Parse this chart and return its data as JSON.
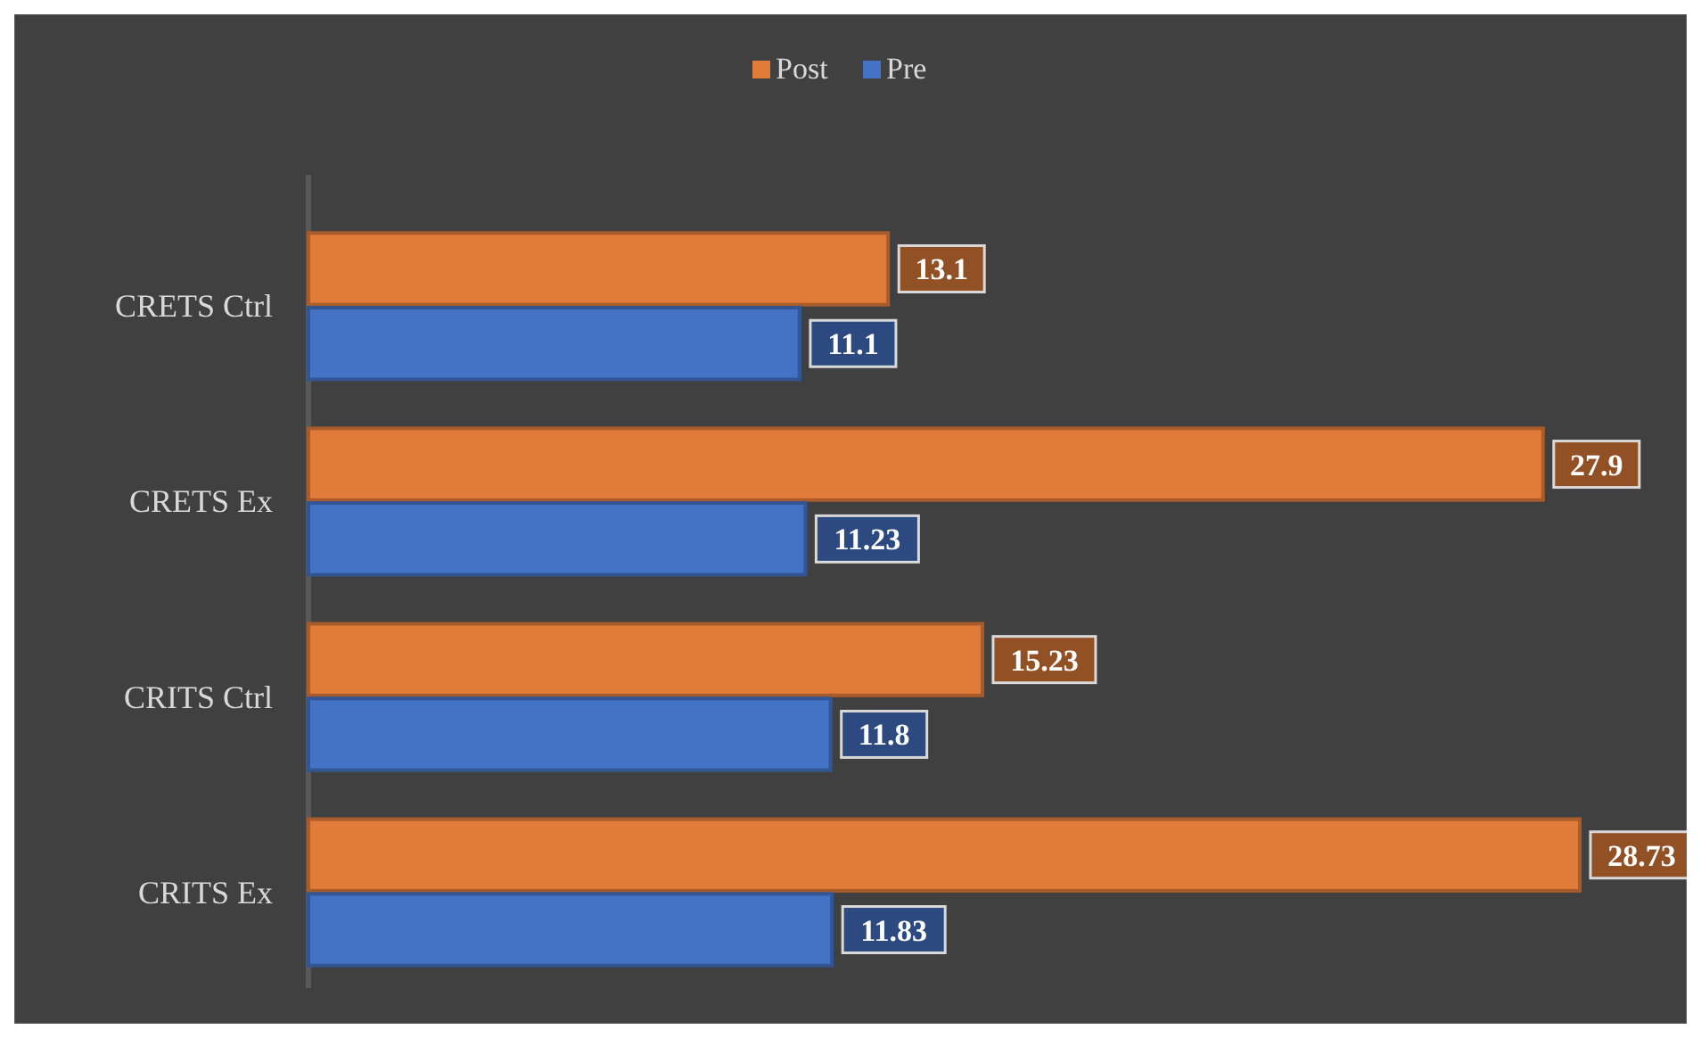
{
  "chart_data": {
    "type": "bar",
    "orientation": "horizontal",
    "categories": [
      "CRETS Ctrl",
      "CRETS Ex",
      "CRITS Ctrl",
      "CRITS Ex"
    ],
    "series": [
      {
        "name": "Post",
        "color": "#e07b39",
        "values": [
          13.1,
          27.9,
          15.23,
          28.73
        ]
      },
      {
        "name": "Pre",
        "color": "#4472c4",
        "values": [
          11.1,
          11.23,
          11.8,
          11.83
        ]
      }
    ],
    "data_labels": true,
    "legend": "top",
    "grid": false
  }
}
